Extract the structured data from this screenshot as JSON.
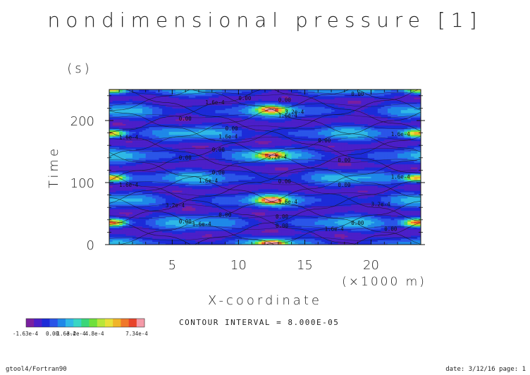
{
  "chart_data": {
    "type": "heatmap",
    "title": "nondimensional pressure [1]",
    "xlabel": "X-coordinate",
    "xunit": "(×1000 m)",
    "ylabel": "Time",
    "yunit": "(s)",
    "xlim": [
      0.25,
      23.75
    ],
    "ylim": [
      0,
      250
    ],
    "xticks": [
      "5",
      "10",
      "15",
      "20"
    ],
    "yticks": [
      "0",
      "100",
      "200"
    ],
    "x_tick_values": [
      5,
      10,
      15,
      20
    ],
    "y_tick_values": [
      0,
      100,
      200
    ],
    "contour_interval_text": "CONTOUR INTERVAL = 8.000E-05",
    "colorbar": {
      "min_label": "-1.63e-4",
      "tick_labels": [
        "-1.63e-4",
        "0.00",
        "1.6e-4",
        "3.2e-4",
        "4.8e-4",
        "7.34e-4"
      ],
      "colors": [
        "#7a1fa0",
        "#4b1fc8",
        "#1c2bd8",
        "#2a55e8",
        "#1f88e8",
        "#2fb8e6",
        "#38d6c4",
        "#3ad67a",
        "#6ee03a",
        "#b8e63a",
        "#e8e03a",
        "#f0b428",
        "#f0782a",
        "#e8442a",
        "#f59aa8"
      ]
    },
    "contour_labels": [
      "0.00",
      "1.6e-4",
      "3.2e-4"
    ],
    "hotspots": [
      {
        "x": 12.5,
        "y": 2,
        "value": 0.0007
      },
      {
        "x": 12.5,
        "y": 72,
        "value": 0.00065
      },
      {
        "x": 12.5,
        "y": 145,
        "value": 0.00062
      },
      {
        "x": 12.5,
        "y": 218,
        "value": 0.00058
      },
      {
        "x": 0.5,
        "y": 36,
        "value": 0.00065
      },
      {
        "x": 0.5,
        "y": 108,
        "value": 0.0006
      },
      {
        "x": 0.5,
        "y": 180,
        "value": 0.00056
      },
      {
        "x": 0.5,
        "y": 250,
        "value": 0.0005
      },
      {
        "x": 23.5,
        "y": 36,
        "value": 0.00065
      },
      {
        "x": 23.5,
        "y": 108,
        "value": 0.0006
      },
      {
        "x": 23.5,
        "y": 180,
        "value": 0.00056
      },
      {
        "x": 23.5,
        "y": 250,
        "value": 0.0005
      }
    ]
  },
  "footer": {
    "left": "gtool4/Fortran90",
    "right": "date: 3/12/16 page: 1"
  }
}
